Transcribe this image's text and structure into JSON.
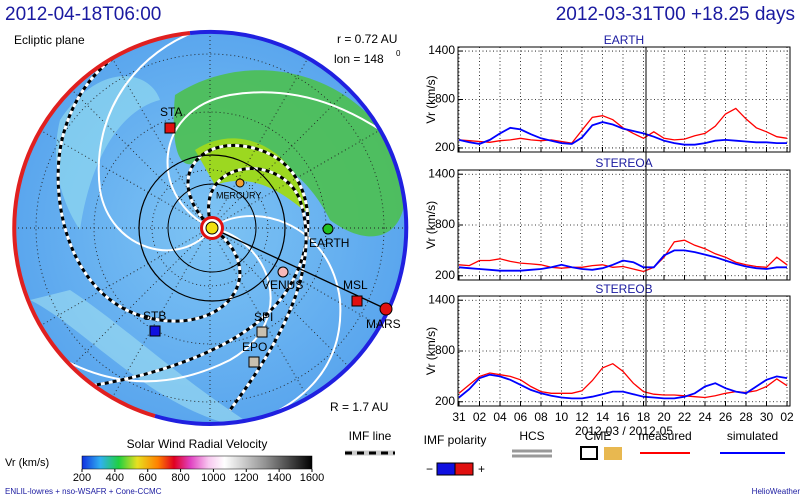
{
  "header": {
    "left": "2012-04-18T06:00",
    "right": "2012-03-31T00 +18.25 days"
  },
  "polar": {
    "title": "Ecliptic plane",
    "r": "r = 0.72 AU",
    "lon": "lon = 148",
    "lon_sup": "0",
    "R": "R = 1.7 AU",
    "bodies": [
      "STA",
      "MERCURY",
      "EARTH",
      "VENUS",
      "MSL",
      "MARS",
      "STB",
      "SPI",
      "EPO"
    ]
  },
  "colorbar": {
    "title": "Solar Wind Radial Velocity",
    "label": "Vr (km/s)",
    "range": [
      200,
      1600
    ],
    "ticks": [
      200,
      400,
      600,
      800,
      1000,
      1200,
      1400,
      1600
    ]
  },
  "legend": {
    "imf_line": "IMF line",
    "imf_polarity": "IMF polarity",
    "minus": "−",
    "plus": "+",
    "hcs": "HCS",
    "cme": "CME"
  },
  "chart_data": [
    {
      "type": "line",
      "title": "EARTH",
      "ylabel": "Vr (km/s)",
      "ylim": [
        150,
        1450
      ],
      "yticks": [
        200,
        800,
        1400
      ],
      "grid": true,
      "series": [
        {
          "color": "#ff0000",
          "values": [
            300,
            290,
            280,
            270,
            290,
            300,
            320,
            300,
            290,
            300,
            280,
            260,
            420,
            580,
            600,
            550,
            450,
            380,
            320,
            400,
            320,
            300,
            310,
            350,
            380,
            470,
            620,
            690,
            560,
            450,
            400,
            340,
            320
          ]
        },
        {
          "color": "#0000ff",
          "values": [
            300,
            270,
            250,
            300,
            380,
            450,
            430,
            370,
            320,
            290,
            260,
            250,
            330,
            480,
            520,
            490,
            440,
            410,
            380,
            340,
            290,
            260,
            240,
            240,
            260,
            290,
            300,
            290,
            280,
            270,
            270,
            260,
            260
          ]
        }
      ]
    },
    {
      "type": "line",
      "title": "STEREOA",
      "ylabel": "Vr (km/s)",
      "ylim": [
        150,
        1450
      ],
      "yticks": [
        200,
        800,
        1400
      ],
      "grid": true,
      "series": [
        {
          "color": "#ff0000",
          "values": [
            330,
            320,
            380,
            380,
            400,
            370,
            350,
            340,
            330,
            300,
            290,
            300,
            300,
            320,
            330,
            300,
            310,
            280,
            250,
            300,
            420,
            600,
            620,
            560,
            520,
            460,
            420,
            360,
            330,
            310,
            300,
            420,
            330
          ]
        },
        {
          "color": "#0000ff",
          "values": [
            300,
            290,
            280,
            270,
            260,
            260,
            260,
            270,
            280,
            300,
            330,
            300,
            280,
            270,
            290,
            330,
            380,
            360,
            300,
            300,
            440,
            500,
            500,
            480,
            450,
            420,
            380,
            340,
            310,
            290,
            280,
            300,
            300
          ]
        }
      ]
    },
    {
      "type": "line",
      "title": "STEREOB",
      "ylabel": "Vr (km/s)",
      "xlabel": "2012-03 / 2012-05",
      "ylim": [
        150,
        1450
      ],
      "yticks": [
        200,
        800,
        1400
      ],
      "grid": true,
      "categories": [
        "31",
        null,
        "02",
        null,
        "04",
        null,
        "06",
        null,
        "08",
        null,
        "10",
        null,
        "12",
        null,
        "14",
        null,
        "16",
        null,
        "18",
        null,
        "20",
        null,
        "22",
        null,
        "24",
        null,
        "26",
        null,
        "28",
        null,
        "30",
        null,
        "02"
      ],
      "series": [
        {
          "name": "measured",
          "color": "#ff0000",
          "values": [
            300,
            400,
            500,
            540,
            520,
            500,
            460,
            380,
            320,
            300,
            300,
            300,
            330,
            450,
            600,
            650,
            560,
            420,
            320,
            290,
            280,
            280,
            270,
            260,
            250,
            270,
            300,
            320,
            310,
            330,
            380,
            470,
            390
          ]
        },
        {
          "name": "simulated",
          "color": "#0000ff",
          "values": [
            250,
            350,
            480,
            520,
            500,
            460,
            400,
            340,
            300,
            270,
            250,
            240,
            240,
            260,
            290,
            320,
            320,
            290,
            260,
            250,
            240,
            240,
            260,
            300,
            380,
            420,
            360,
            320,
            300,
            380,
            460,
            500,
            480
          ]
        }
      ]
    }
  ],
  "footer": {
    "left": "ENLIL-lowres + nso-WSAFR + Cone-CCMC",
    "right": "HelioWeather"
  }
}
